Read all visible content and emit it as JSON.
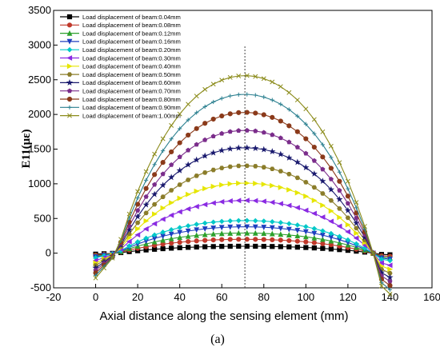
{
  "chart_data": {
    "type": "line",
    "xlabel": "Axial distance along the sensing element (mm)",
    "ylabel": "E11(με)",
    "panel_label": "(a)",
    "xlim": [
      -20,
      160
    ],
    "ylim": [
      -500,
      3500
    ],
    "xticks": [
      -20,
      0,
      20,
      40,
      60,
      80,
      100,
      120,
      140,
      160
    ],
    "yticks": [
      -500,
      0,
      500,
      1000,
      1500,
      2000,
      2500,
      3000,
      3500
    ],
    "x": [
      0,
      4,
      8,
      12,
      16,
      20,
      24,
      28,
      32,
      36,
      40,
      44,
      48,
      52,
      56,
      60,
      64,
      68,
      72,
      76,
      80,
      84,
      88,
      92,
      96,
      100,
      104,
      108,
      112,
      116,
      120,
      124,
      128,
      132,
      136,
      140
    ],
    "reference_line_x": 71,
    "legend_position": "top-left",
    "series": [
      {
        "name": "Load displacement of beam:0.04mm",
        "peak": 100,
        "color": "#000000",
        "marker": "square"
      },
      {
        "name": "Load displacement of beam:0.08mm",
        "peak": 200,
        "color": "#c0392b",
        "marker": "circle"
      },
      {
        "name": "Load displacement of beam:0.12mm",
        "peak": 290,
        "color": "#2ca02c",
        "marker": "triangle-up"
      },
      {
        "name": "Load displacement of beam:0.16mm",
        "peak": 380,
        "color": "#1f3fbf",
        "marker": "triangle-down"
      },
      {
        "name": "Load displacement of beam:0.20mm",
        "peak": 470,
        "color": "#00c8c8",
        "marker": "diamond"
      },
      {
        "name": "Load displacement of beam:0.30mm",
        "peak": 760,
        "color": "#8a2be2",
        "marker": "triangle-left"
      },
      {
        "name": "Load displacement of beam:0.40mm",
        "peak": 1010,
        "color": "#e6e600",
        "marker": "triangle-right"
      },
      {
        "name": "Load displacement of beam:0.50mm",
        "peak": 1260,
        "color": "#8b7d2a",
        "marker": "hexagon"
      },
      {
        "name": "Load displacement of beam:0.60mm",
        "peak": 1520,
        "color": "#1a1a6e",
        "marker": "star"
      },
      {
        "name": "Load displacement of beam:0.70mm",
        "peak": 1770,
        "color": "#7b2d8b",
        "marker": "pentagon"
      },
      {
        "name": "Load displacement of beam:0.80mm",
        "peak": 2030,
        "color": "#8b3a1a",
        "marker": "circle"
      },
      {
        "name": "Load displacement of beam:0.90mm",
        "peak": 2290,
        "color": "#2a7f8f",
        "marker": "plus"
      },
      {
        "name": "Load displacement of beam:1.00mm",
        "peak": 2560,
        "color": "#8b8b1a",
        "marker": "x"
      }
    ]
  }
}
